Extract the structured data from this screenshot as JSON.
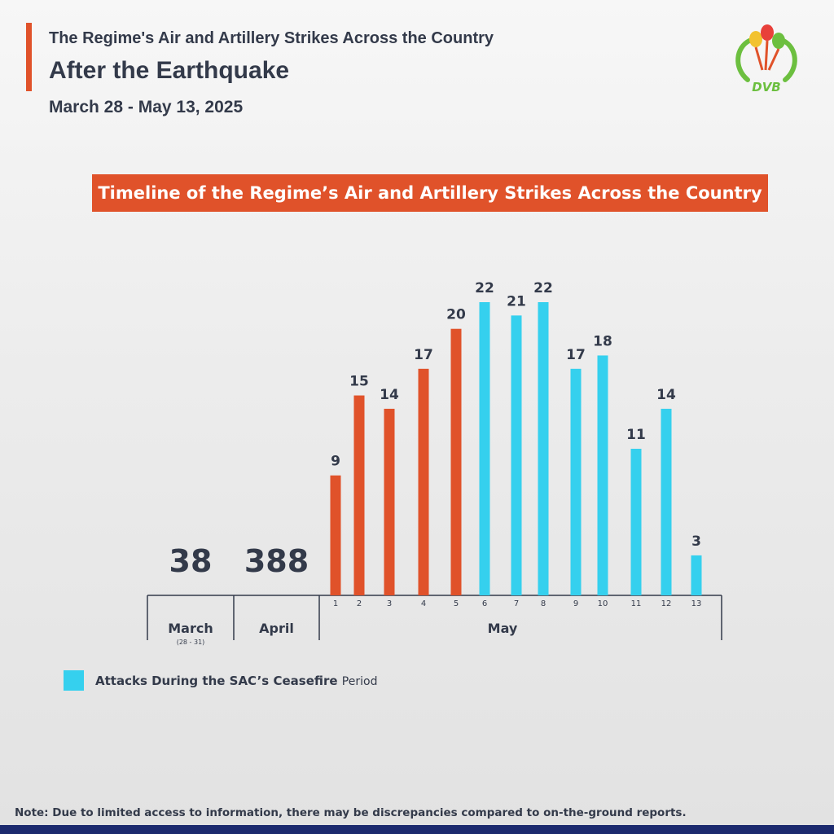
{
  "header": {
    "line1": "The Regime's Air and Artillery Strikes Across the Country",
    "line2": "After the Earthquake",
    "date_range": "March 28 - May 13, 2025"
  },
  "logo": {
    "text": "DVB"
  },
  "chart_data": {
    "type": "bar",
    "title": "Timeline of the Regime’s Air and Artillery Strikes Across the Country",
    "monthly_totals": [
      {
        "month": "March",
        "sub_label": "(28 - 31)",
        "value": 38
      },
      {
        "month": "April",
        "sub_label": "",
        "value": 388
      }
    ],
    "daily_group_label": "May",
    "categories": [
      "1",
      "2",
      "3",
      "4",
      "5",
      "6",
      "7",
      "8",
      "9",
      "10",
      "11",
      "12",
      "13"
    ],
    "values": [
      9,
      15,
      14,
      17,
      20,
      22,
      21,
      22,
      17,
      18,
      11,
      14,
      3
    ],
    "ceasefire": [
      false,
      false,
      false,
      false,
      false,
      true,
      true,
      true,
      true,
      true,
      true,
      true,
      true
    ],
    "ylim": [
      0,
      22
    ],
    "colors": {
      "normal": "#e0522a",
      "ceasefire": "#35d0ee",
      "axis": "#333a4a"
    },
    "legend": {
      "label": "Attacks During the SAC’s Ceasefire",
      "label_suffix": "Period",
      "placement": "bottom-left"
    }
  },
  "note": "Note: Due to limited access to information, there may be discrepancies compared to on-the-ground reports."
}
